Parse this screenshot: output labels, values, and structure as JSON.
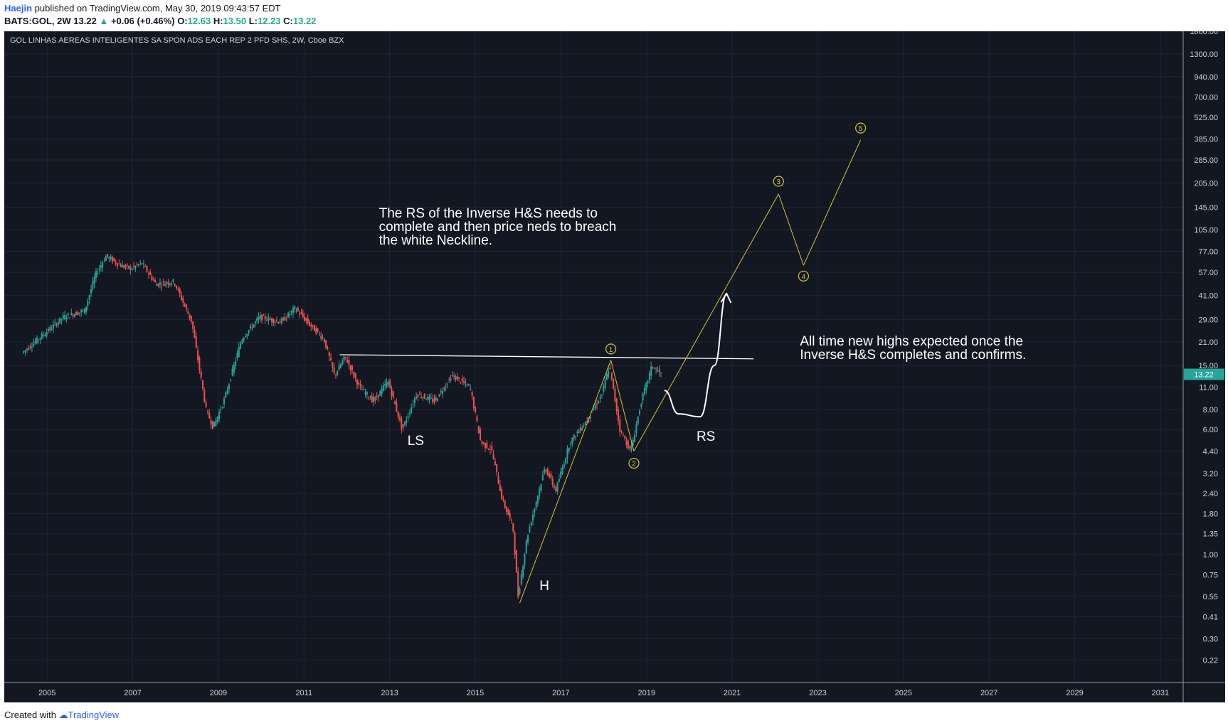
{
  "header": {
    "author": "Haejin",
    "published_text": "published on TradingView.com, May 30, 2019 09:43:57 EDT",
    "symbol": "BATS:GOL, 2W",
    "last": "13.22",
    "change": "+0.06 (+0.46%)",
    "open_label": "O:",
    "open": "12.63",
    "high_label": "H:",
    "high": "13.50",
    "low_label": "L:",
    "low": "12.23",
    "close_label": "C:",
    "close": "13.22"
  },
  "chart_title": "GOL LINHAS AEREAS INTELIGENTES SA SPON ADS EACH REP 2 PFD SHS, 2W, Cboe BZX",
  "footer": {
    "created_with": "Created with",
    "brand": "TradingView"
  },
  "colors": {
    "background": "#131722",
    "grid": "#1f2433",
    "up": "#26a69a",
    "down": "#ef5350",
    "neckline": "#ffffff",
    "wave": "#d4c53b",
    "price_label_bg": "#26a69a"
  },
  "chart_data": {
    "type": "candlestick",
    "scale": "log",
    "x_range": [
      "2004-01",
      "2031-06"
    ],
    "y_range": [
      0.16,
      1800
    ],
    "x_ticks": [
      "2005",
      "2007",
      "2009",
      "2011",
      "2013",
      "2015",
      "2017",
      "2019",
      "2021",
      "2023",
      "2025",
      "2027",
      "2029",
      "2031"
    ],
    "y_ticks": [
      "1800.00",
      "1300.00",
      "940.00",
      "700.00",
      "525.00",
      "385.00",
      "285.00",
      "205.00",
      "145.00",
      "105.00",
      "77.00",
      "57.00",
      "41.00",
      "29.00",
      "21.00",
      "15.00",
      "11.00",
      "8.00",
      "6.00",
      "4.40",
      "3.20",
      "2.40",
      "1.80",
      "1.35",
      "1.00",
      "0.75",
      "0.55",
      "0.41",
      "0.30",
      "0.22"
    ],
    "current_price_label": "13.22",
    "price_path": [
      [
        "2004-06-15",
        18
      ],
      [
        "2005-01-01",
        24
      ],
      [
        "2005-06-01",
        30
      ],
      [
        "2005-12-01",
        33
      ],
      [
        "2006-03-01",
        55
      ],
      [
        "2006-06-01",
        72
      ],
      [
        "2006-10-01",
        63
      ],
      [
        "2007-01-01",
        60
      ],
      [
        "2007-04-01",
        65
      ],
      [
        "2007-08-01",
        48
      ],
      [
        "2008-01-01",
        50
      ],
      [
        "2008-06-01",
        28
      ],
      [
        "2008-10-01",
        8
      ],
      [
        "2008-12-01",
        6.2
      ],
      [
        "2009-03-01",
        9
      ],
      [
        "2009-08-01",
        22
      ],
      [
        "2010-01-01",
        30
      ],
      [
        "2010-07-01",
        28
      ],
      [
        "2010-11-01",
        34
      ],
      [
        "2011-03-01",
        27
      ],
      [
        "2011-07-01",
        22
      ],
      [
        "2011-10-01",
        13
      ],
      [
        "2012-01-01",
        17
      ],
      [
        "2012-05-01",
        11
      ],
      [
        "2012-09-01",
        9
      ],
      [
        "2013-01-01",
        12
      ],
      [
        "2013-05-01",
        6
      ],
      [
        "2013-09-01",
        10
      ],
      [
        "2014-02-01",
        9
      ],
      [
        "2014-07-01",
        13
      ],
      [
        "2014-12-01",
        11
      ],
      [
        "2015-03-01",
        5
      ],
      [
        "2015-06-01",
        4.5
      ],
      [
        "2015-09-01",
        2.2
      ],
      [
        "2015-12-01",
        1.5
      ],
      [
        "2016-01-15",
        0.55
      ],
      [
        "2016-04-01",
        1.3
      ],
      [
        "2016-09-01",
        3.5
      ],
      [
        "2016-12-01",
        2.5
      ],
      [
        "2017-04-01",
        5
      ],
      [
        "2017-09-01",
        7
      ],
      [
        "2018-01-01",
        10
      ],
      [
        "2018-03-01",
        15
      ],
      [
        "2018-06-01",
        6
      ],
      [
        "2018-09-01",
        4.4
      ],
      [
        "2018-12-01",
        9
      ],
      [
        "2019-03-01",
        15
      ],
      [
        "2019-05-15",
        13.22
      ]
    ],
    "neckline": [
      [
        "2011-11-01",
        17.5
      ],
      [
        "2021-07-01",
        16.5
      ]
    ],
    "wave_lines": [
      [
        [
          "2016-01-15",
          0.5
        ],
        [
          "2018-03-01",
          16.2
        ]
      ],
      [
        [
          "2018-03-01",
          16.2
        ],
        [
          "2018-09-15",
          4.4
        ]
      ],
      [
        [
          "2018-09-15",
          4.4
        ],
        [
          "2022-02-01",
          175
        ]
      ],
      [
        [
          "2022-02-01",
          175
        ],
        [
          "2022-09-01",
          63
        ]
      ],
      [
        [
          "2022-09-01",
          63
        ],
        [
          "2024-01-01",
          380
        ]
      ]
    ],
    "wave_labels": [
      {
        "label": "1",
        "date": "2018-03-01",
        "value": 19
      },
      {
        "label": "2",
        "date": "2018-09-15",
        "value": 3.7
      },
      {
        "label": "3",
        "date": "2022-02-01",
        "value": 210
      },
      {
        "label": "4",
        "date": "2022-09-01",
        "value": 54
      },
      {
        "label": "5",
        "date": "2024-01-01",
        "value": 450
      }
    ],
    "projection_curve": [
      [
        "2019-06-01",
        10.5
      ],
      [
        "2019-10-01",
        7.5
      ],
      [
        "2020-04-01",
        7.2
      ],
      [
        "2020-08-01",
        15
      ],
      [
        "2020-11-15",
        42
      ]
    ],
    "annotations": [
      {
        "text": "LS",
        "date": "2013-06-01",
        "value": 4.8
      },
      {
        "text": "H",
        "date": "2016-07-01",
        "value": 0.6
      },
      {
        "text": "RS",
        "date": "2020-03-01",
        "value": 5.1
      },
      {
        "lines": [
          "The RS of the Inverse H&S needs to",
          "complete and then price neds to breach",
          "the white Neckline."
        ],
        "date": "2012-10-01",
        "value": 125
      },
      {
        "lines": [
          "All time new highs expected once the",
          "Inverse H&S completes and confirms."
        ],
        "date": "2022-08-01",
        "value": 20
      }
    ]
  }
}
